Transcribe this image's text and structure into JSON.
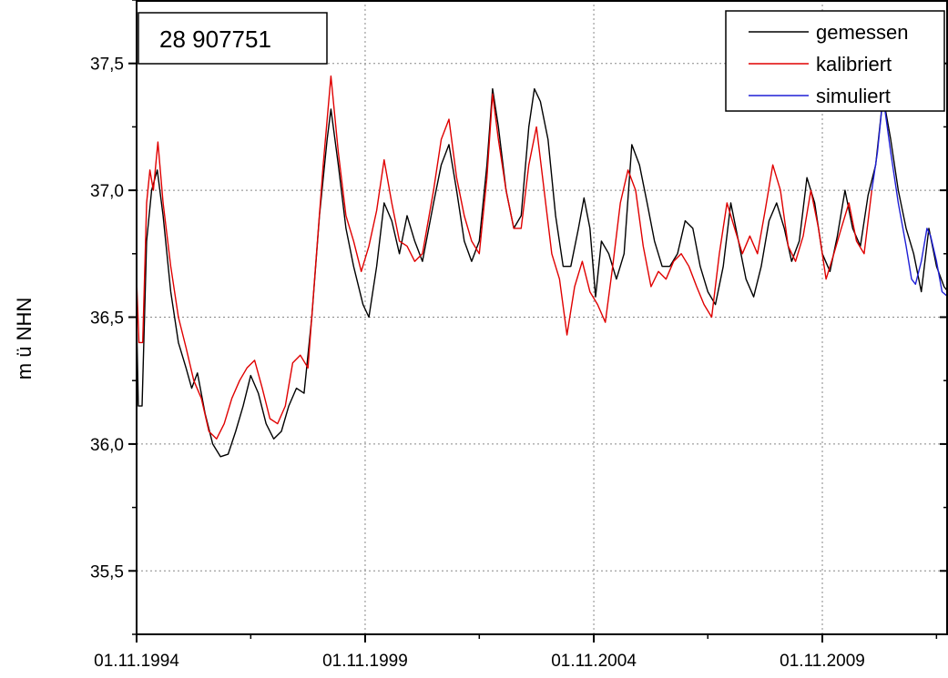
{
  "chart_data": {
    "type": "line",
    "title": "28 907751",
    "xlabel": "",
    "ylabel": "m ü NHN",
    "x_ticks": [
      "01.11.1994",
      "01.11.1999",
      "01.11.2004",
      "01.11.2009"
    ],
    "y_ticks": [
      "35,5",
      "36,0",
      "36,5",
      "37,0",
      "37,5"
    ],
    "xlim": [
      "1994-11-01",
      "2012-08-01"
    ],
    "ylim": [
      35.25,
      37.75
    ],
    "grid": true,
    "legend_position": "top-right",
    "series": [
      {
        "name": "gemessen",
        "color": "#000000",
        "points": [
          [
            "1994-11-01",
            36.5
          ],
          [
            "1994-11-15",
            36.15
          ],
          [
            "1994-12-15",
            36.15
          ],
          [
            "1995-01-20",
            36.8
          ],
          [
            "1995-03-01",
            37.0
          ],
          [
            "1995-04-15",
            37.08
          ],
          [
            "1995-06-01",
            36.9
          ],
          [
            "1995-08-01",
            36.6
          ],
          [
            "1995-10-01",
            36.4
          ],
          [
            "1995-12-01",
            36.3
          ],
          [
            "1996-01-15",
            36.22
          ],
          [
            "1996-03-01",
            36.28
          ],
          [
            "1996-05-01",
            36.12
          ],
          [
            "1996-07-01",
            36.0
          ],
          [
            "1996-09-01",
            35.95
          ],
          [
            "1996-11-01",
            35.96
          ],
          [
            "1997-01-01",
            36.05
          ],
          [
            "1997-03-01",
            36.15
          ],
          [
            "1997-05-01",
            36.27
          ],
          [
            "1997-07-01",
            36.2
          ],
          [
            "1997-09-01",
            36.08
          ],
          [
            "1997-11-01",
            36.02
          ],
          [
            "1998-01-01",
            36.05
          ],
          [
            "1998-03-01",
            36.15
          ],
          [
            "1998-05-01",
            36.22
          ],
          [
            "1998-07-01",
            36.2
          ],
          [
            "1998-09-01",
            36.5
          ],
          [
            "1998-11-01",
            36.9
          ],
          [
            "1999-01-01",
            37.2
          ],
          [
            "1999-02-01",
            37.32
          ],
          [
            "1999-04-01",
            37.1
          ],
          [
            "1999-06-01",
            36.85
          ],
          [
            "1999-08-01",
            36.7
          ],
          [
            "1999-10-15",
            36.55
          ],
          [
            "1999-12-01",
            36.5
          ],
          [
            "2000-02-01",
            36.7
          ],
          [
            "2000-04-01",
            36.95
          ],
          [
            "2000-06-01",
            36.88
          ],
          [
            "2000-08-01",
            36.75
          ],
          [
            "2000-10-01",
            36.9
          ],
          [
            "2000-12-01",
            36.8
          ],
          [
            "2001-02-01",
            36.72
          ],
          [
            "2001-05-01",
            36.95
          ],
          [
            "2001-07-01",
            37.1
          ],
          [
            "2001-09-01",
            37.18
          ],
          [
            "2001-11-01",
            37.0
          ],
          [
            "2002-01-01",
            36.8
          ],
          [
            "2002-03-01",
            36.72
          ],
          [
            "2002-05-01",
            36.8
          ],
          [
            "2002-07-01",
            37.1
          ],
          [
            "2002-08-15",
            37.4
          ],
          [
            "2002-10-01",
            37.25
          ],
          [
            "2002-12-01",
            37.0
          ],
          [
            "2003-02-01",
            36.85
          ],
          [
            "2003-04-01",
            36.9
          ],
          [
            "2003-06-01",
            37.25
          ],
          [
            "2003-07-15",
            37.4
          ],
          [
            "2003-09-01",
            37.35
          ],
          [
            "2003-11-01",
            37.2
          ],
          [
            "2004-01-01",
            36.9
          ],
          [
            "2004-03-01",
            36.7
          ],
          [
            "2004-05-01",
            36.7
          ],
          [
            "2004-07-01",
            36.85
          ],
          [
            "2004-08-15",
            36.97
          ],
          [
            "2004-10-01",
            36.85
          ],
          [
            "2004-11-15",
            36.58
          ],
          [
            "2005-01-01",
            36.8
          ],
          [
            "2005-03-01",
            36.75
          ],
          [
            "2005-05-01",
            36.65
          ],
          [
            "2005-07-01",
            36.75
          ],
          [
            "2005-09-01",
            37.18
          ],
          [
            "2005-11-01",
            37.1
          ],
          [
            "2006-01-01",
            36.95
          ],
          [
            "2006-03-01",
            36.8
          ],
          [
            "2006-05-01",
            36.7
          ],
          [
            "2006-07-01",
            36.7
          ],
          [
            "2006-09-01",
            36.75
          ],
          [
            "2006-11-01",
            36.88
          ],
          [
            "2007-01-01",
            36.85
          ],
          [
            "2007-03-01",
            36.7
          ],
          [
            "2007-05-01",
            36.6
          ],
          [
            "2007-07-01",
            36.55
          ],
          [
            "2007-09-01",
            36.7
          ],
          [
            "2007-11-01",
            36.95
          ],
          [
            "2008-01-01",
            36.8
          ],
          [
            "2008-03-01",
            36.65
          ],
          [
            "2008-05-01",
            36.58
          ],
          [
            "2008-07-01",
            36.7
          ],
          [
            "2008-09-01",
            36.88
          ],
          [
            "2008-11-01",
            36.95
          ],
          [
            "2009-01-01",
            36.85
          ],
          [
            "2009-03-01",
            36.72
          ],
          [
            "2009-05-01",
            36.8
          ],
          [
            "2009-07-01",
            37.05
          ],
          [
            "2009-09-01",
            36.95
          ],
          [
            "2009-11-01",
            36.75
          ],
          [
            "2010-01-01",
            36.68
          ],
          [
            "2010-03-01",
            36.82
          ],
          [
            "2010-05-01",
            37.0
          ],
          [
            "2010-07-01",
            36.85
          ],
          [
            "2010-09-01",
            36.78
          ],
          [
            "2010-11-01",
            36.98
          ],
          [
            "2011-01-01",
            37.1
          ],
          [
            "2011-03-01",
            37.37
          ],
          [
            "2011-05-01",
            37.2
          ],
          [
            "2011-07-01",
            37.0
          ],
          [
            "2011-09-01",
            36.85
          ],
          [
            "2011-11-01",
            36.75
          ],
          [
            "2012-01-01",
            36.6
          ],
          [
            "2012-03-01",
            36.85
          ],
          [
            "2012-05-01",
            36.7
          ],
          [
            "2012-07-01",
            36.62
          ],
          [
            "2012-08-01",
            36.6
          ]
        ]
      },
      {
        "name": "kalibriert",
        "color": "#e00000",
        "points": [
          [
            "1994-11-01",
            36.65
          ],
          [
            "1994-11-20",
            36.4
          ],
          [
            "1994-12-20",
            36.4
          ],
          [
            "1995-01-20",
            36.95
          ],
          [
            "1995-02-15",
            37.08
          ],
          [
            "1995-03-15",
            37.0
          ],
          [
            "1995-04-20",
            37.19
          ],
          [
            "1995-06-01",
            36.95
          ],
          [
            "1995-08-01",
            36.7
          ],
          [
            "1995-10-01",
            36.5
          ],
          [
            "1995-12-01",
            36.38
          ],
          [
            "1996-02-01",
            36.25
          ],
          [
            "1996-04-01",
            36.18
          ],
          [
            "1996-06-01",
            36.05
          ],
          [
            "1996-08-01",
            36.02
          ],
          [
            "1996-10-01",
            36.08
          ],
          [
            "1996-12-01",
            36.18
          ],
          [
            "1997-02-01",
            36.25
          ],
          [
            "1997-04-01",
            36.3
          ],
          [
            "1997-06-01",
            36.33
          ],
          [
            "1997-08-01",
            36.22
          ],
          [
            "1997-10-01",
            36.1
          ],
          [
            "1997-12-01",
            36.08
          ],
          [
            "1998-02-01",
            36.15
          ],
          [
            "1998-04-01",
            36.32
          ],
          [
            "1998-06-01",
            36.35
          ],
          [
            "1998-08-01",
            36.3
          ],
          [
            "1998-10-01",
            36.7
          ],
          [
            "1998-12-01",
            37.1
          ],
          [
            "1999-02-01",
            37.45
          ],
          [
            "1999-04-01",
            37.15
          ],
          [
            "1999-06-01",
            36.9
          ],
          [
            "1999-08-01",
            36.8
          ],
          [
            "1999-10-01",
            36.68
          ],
          [
            "1999-12-01",
            36.78
          ],
          [
            "2000-02-01",
            36.92
          ],
          [
            "2000-04-01",
            37.12
          ],
          [
            "2000-06-01",
            36.95
          ],
          [
            "2000-08-01",
            36.8
          ],
          [
            "2000-10-01",
            36.78
          ],
          [
            "2000-12-01",
            36.72
          ],
          [
            "2001-02-01",
            36.75
          ],
          [
            "2001-05-01",
            37.0
          ],
          [
            "2001-07-01",
            37.2
          ],
          [
            "2001-09-01",
            37.28
          ],
          [
            "2001-11-01",
            37.05
          ],
          [
            "2002-01-01",
            36.9
          ],
          [
            "2002-03-01",
            36.8
          ],
          [
            "2002-05-01",
            36.75
          ],
          [
            "2002-07-01",
            37.05
          ],
          [
            "2002-08-15",
            37.38
          ],
          [
            "2002-10-01",
            37.2
          ],
          [
            "2002-12-01",
            37.0
          ],
          [
            "2003-02-01",
            36.85
          ],
          [
            "2003-04-01",
            36.85
          ],
          [
            "2003-06-01",
            37.1
          ],
          [
            "2003-08-01",
            37.25
          ],
          [
            "2003-10-01",
            37.0
          ],
          [
            "2003-12-01",
            36.75
          ],
          [
            "2004-02-01",
            36.65
          ],
          [
            "2004-04-01",
            36.43
          ],
          [
            "2004-06-01",
            36.62
          ],
          [
            "2004-08-01",
            36.72
          ],
          [
            "2004-10-01",
            36.6
          ],
          [
            "2004-12-01",
            36.55
          ],
          [
            "2005-02-01",
            36.48
          ],
          [
            "2005-04-01",
            36.7
          ],
          [
            "2005-06-01",
            36.95
          ],
          [
            "2005-08-01",
            37.08
          ],
          [
            "2005-10-01",
            37.0
          ],
          [
            "2005-12-01",
            36.78
          ],
          [
            "2006-02-01",
            36.62
          ],
          [
            "2006-04-01",
            36.68
          ],
          [
            "2006-06-01",
            36.65
          ],
          [
            "2006-08-01",
            36.72
          ],
          [
            "2006-10-01",
            36.75
          ],
          [
            "2006-12-01",
            36.7
          ],
          [
            "2007-02-01",
            36.62
          ],
          [
            "2007-04-01",
            36.55
          ],
          [
            "2007-06-01",
            36.5
          ],
          [
            "2007-08-01",
            36.75
          ],
          [
            "2007-10-01",
            36.95
          ],
          [
            "2007-12-01",
            36.85
          ],
          [
            "2008-02-01",
            36.75
          ],
          [
            "2008-04-01",
            36.82
          ],
          [
            "2008-06-01",
            36.75
          ],
          [
            "2008-08-01",
            36.92
          ],
          [
            "2008-10-01",
            37.1
          ],
          [
            "2008-12-01",
            37.0
          ],
          [
            "2009-02-01",
            36.78
          ],
          [
            "2009-04-01",
            36.72
          ],
          [
            "2009-06-01",
            36.82
          ],
          [
            "2009-08-01",
            37.0
          ],
          [
            "2009-10-01",
            36.85
          ],
          [
            "2009-12-01",
            36.65
          ],
          [
            "2010-02-01",
            36.75
          ],
          [
            "2010-04-01",
            36.85
          ],
          [
            "2010-06-01",
            36.95
          ],
          [
            "2010-08-01",
            36.8
          ],
          [
            "2010-10-01",
            36.75
          ],
          [
            "2010-12-01",
            37.0
          ]
        ]
      },
      {
        "name": "simuliert",
        "color": "#1f1fd6",
        "points": [
          [
            "2010-12-01",
            37.0
          ],
          [
            "2011-01-15",
            37.15
          ],
          [
            "2011-03-01",
            37.37
          ],
          [
            "2011-05-01",
            37.15
          ],
          [
            "2011-07-01",
            36.95
          ],
          [
            "2011-09-01",
            36.78
          ],
          [
            "2011-10-15",
            36.65
          ],
          [
            "2011-11-15",
            36.63
          ],
          [
            "2012-01-01",
            36.72
          ],
          [
            "2012-02-15",
            36.85
          ],
          [
            "2012-03-15",
            36.82
          ],
          [
            "2012-05-01",
            36.72
          ],
          [
            "2012-06-15",
            36.6
          ],
          [
            "2012-08-01",
            36.58
          ]
        ]
      }
    ]
  },
  "legend": {
    "items": [
      {
        "label": "gemessen",
        "color": "#000000"
      },
      {
        "label": "kalibriert",
        "color": "#e00000"
      },
      {
        "label": "simuliert",
        "color": "#1f1fd6"
      }
    ]
  }
}
